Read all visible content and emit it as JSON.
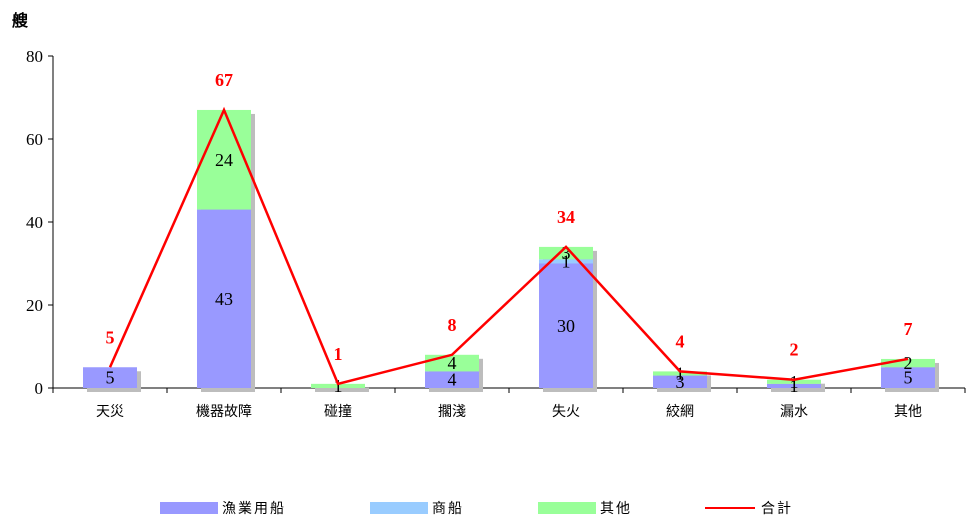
{
  "chart_data": {
    "type": "bar",
    "stacked": true,
    "ylabel": "艘",
    "ylim": [
      0,
      80
    ],
    "yticks": [
      0,
      20,
      40,
      60,
      80
    ],
    "grid": false,
    "legend_position": "bottom",
    "categories": [
      "天災",
      "機器故障",
      "碰撞",
      "擱淺",
      "失火",
      "絞網",
      "漏水",
      "其他"
    ],
    "series": [
      {
        "name": "漁業用船",
        "color": "#9999ff",
        "values": [
          5,
          43,
          0,
          4,
          30,
          3,
          1,
          5
        ],
        "labels": [
          "5",
          "43",
          "",
          "4",
          "30",
          "3",
          "1",
          "5"
        ]
      },
      {
        "name": "商船",
        "color": "#99ccff",
        "values": [
          0,
          0,
          0,
          0,
          1,
          0,
          0,
          0
        ],
        "labels": [
          "",
          "",
          "",
          "",
          "1",
          "",
          "",
          ""
        ]
      },
      {
        "name": "其他",
        "color": "#99ff99",
        "values": [
          0,
          24,
          1,
          4,
          3,
          1,
          1,
          2
        ],
        "labels": [
          "",
          "24",
          "1",
          "4",
          "3",
          "1",
          "1",
          "2"
        ]
      }
    ],
    "total": {
      "name": "合計",
      "color": "#ff0000",
      "values": [
        5,
        67,
        1,
        8,
        34,
        4,
        2,
        7
      ]
    }
  }
}
